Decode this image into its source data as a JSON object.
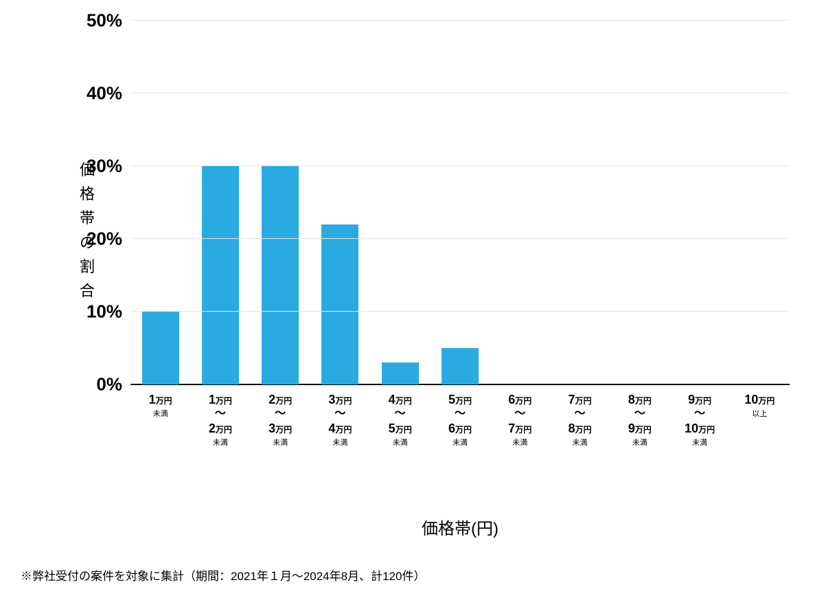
{
  "chart": {
    "type": "bar",
    "y_axis_label": "価格帯の割合",
    "x_axis_title": "価格帯(円)",
    "ylim": [
      0,
      50
    ],
    "ytick_step": 10,
    "ytick_suffix": "%",
    "y_ticks": [
      "0%",
      "10%",
      "20%",
      "30%",
      "40%",
      "50%"
    ],
    "bar_color": "#29abe2",
    "background_color": "#ffffff",
    "grid_color": "#e5e5e5",
    "axis_line_color": "#000000",
    "tick_label_fontsize": 26,
    "tick_label_fontweight": 700,
    "axis_label_fontsize": 22,
    "footnote_fontsize": 17,
    "categories": [
      {
        "line1_num": "1",
        "line1_unit": "万円",
        "line2_num": "",
        "line2_unit": "",
        "sub": "未満",
        "has_range": false
      },
      {
        "line1_num": "1",
        "line1_unit": "万円",
        "line2_num": "2",
        "line2_unit": "万円",
        "sub": "未満",
        "has_range": true
      },
      {
        "line1_num": "2",
        "line1_unit": "万円",
        "line2_num": "3",
        "line2_unit": "万円",
        "sub": "未満",
        "has_range": true
      },
      {
        "line1_num": "3",
        "line1_unit": "万円",
        "line2_num": "4",
        "line2_unit": "万円",
        "sub": "未満",
        "has_range": true
      },
      {
        "line1_num": "4",
        "line1_unit": "万円",
        "line2_num": "5",
        "line2_unit": "万円",
        "sub": "未満",
        "has_range": true
      },
      {
        "line1_num": "5",
        "line1_unit": "万円",
        "line2_num": "6",
        "line2_unit": "万円",
        "sub": "未満",
        "has_range": true
      },
      {
        "line1_num": "6",
        "line1_unit": "万円",
        "line2_num": "7",
        "line2_unit": "万円",
        "sub": "未満",
        "has_range": true
      },
      {
        "line1_num": "7",
        "line1_unit": "万円",
        "line2_num": "8",
        "line2_unit": "万円",
        "sub": "未満",
        "has_range": true
      },
      {
        "line1_num": "8",
        "line1_unit": "万円",
        "line2_num": "9",
        "line2_unit": "万円",
        "sub": "未満",
        "has_range": true
      },
      {
        "line1_num": "9",
        "line1_unit": "万円",
        "line2_num": "10",
        "line2_unit": "万円",
        "sub": "未満",
        "has_range": true
      },
      {
        "line1_num": "10",
        "line1_unit": "万円",
        "line2_num": "",
        "line2_unit": "",
        "sub": "以上",
        "has_range": false
      }
    ],
    "values": [
      10,
      30,
      30,
      22,
      3,
      5,
      0,
      0,
      0,
      0,
      0
    ]
  },
  "footnote": "※弊社受付の案件を対象に集計（期間：2021年１月〜2024年8月、計120件）"
}
